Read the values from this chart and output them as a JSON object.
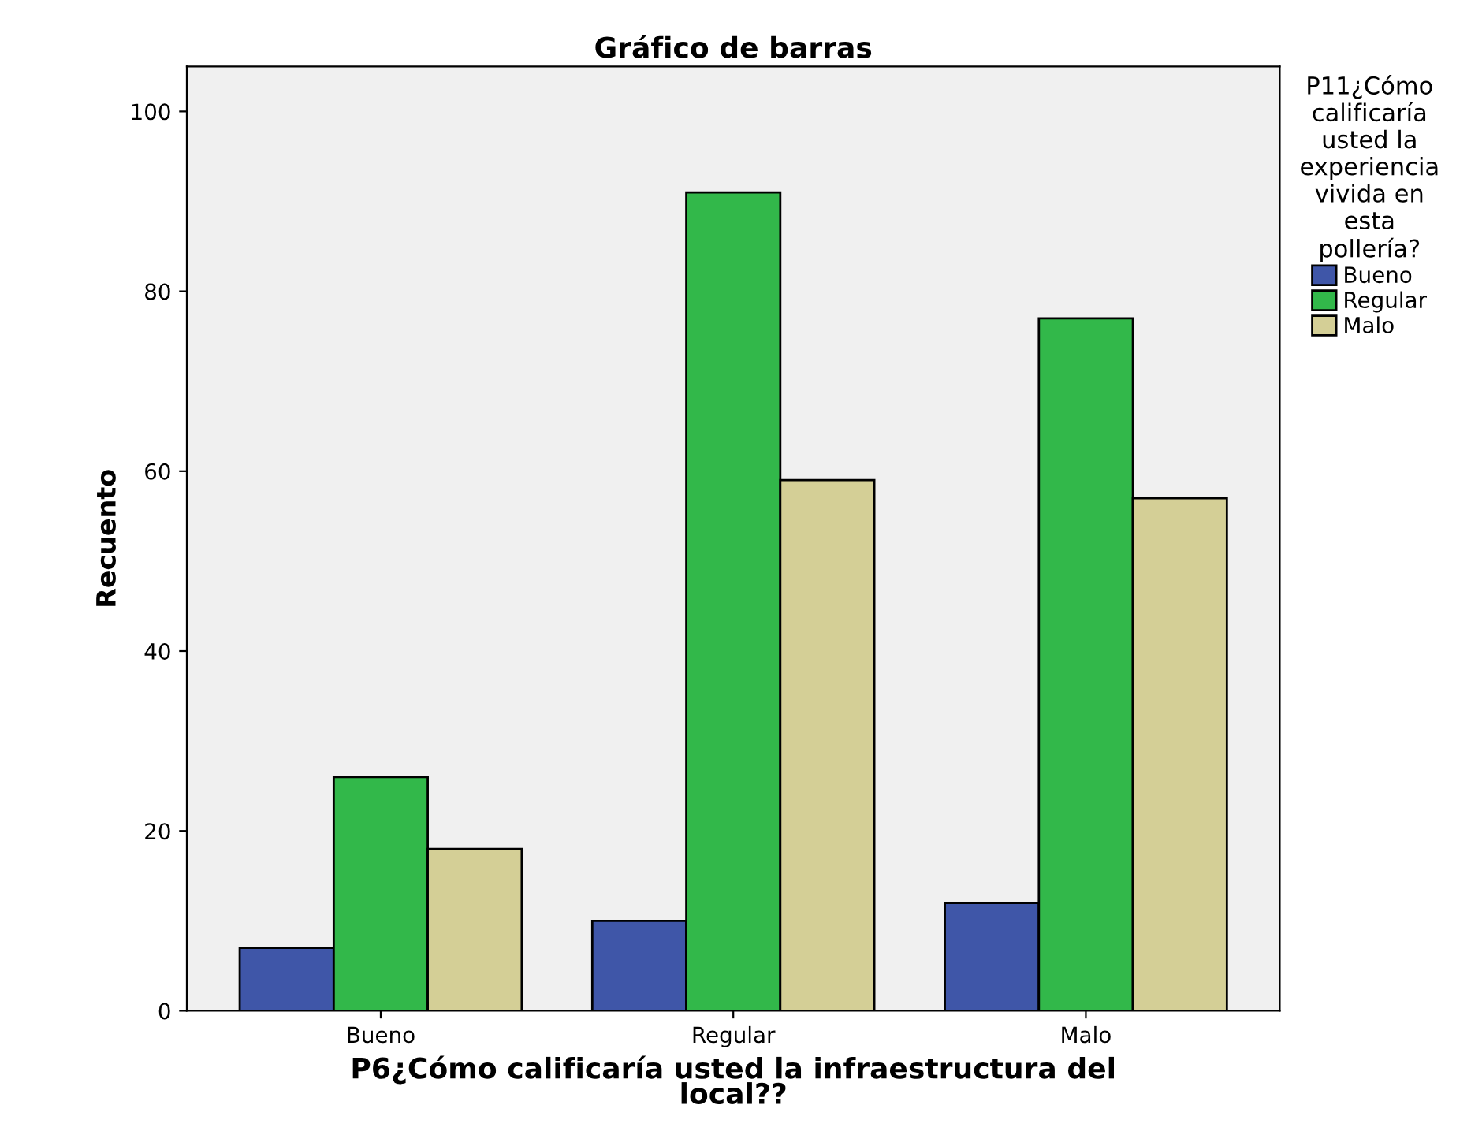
{
  "chart_data": {
    "type": "bar",
    "title": "Gráfico de barras",
    "xlabel": "P6¿Cómo calificaría usted la infraestructura del\nlocal??",
    "ylabel": "Recuento",
    "legend_title": "P11¿Cómo\ncalificaría\nusted la\nexperiencia\nvivida en\nesta\npollería?",
    "categories": [
      "Bueno",
      "Regular",
      "Malo"
    ],
    "series": [
      {
        "name": "Bueno",
        "color": "#3f56a8",
        "values": [
          7,
          10,
          12
        ]
      },
      {
        "name": "Regular",
        "color": "#32b84a",
        "values": [
          26,
          91,
          77
        ]
      },
      {
        "name": "Malo",
        "color": "#d4cf96",
        "values": [
          18,
          59,
          57
        ]
      }
    ],
    "ylim": [
      0,
      105
    ],
    "yticks": [
      0,
      20,
      40,
      60,
      80,
      100
    ],
    "grid": false,
    "legend": "right"
  }
}
